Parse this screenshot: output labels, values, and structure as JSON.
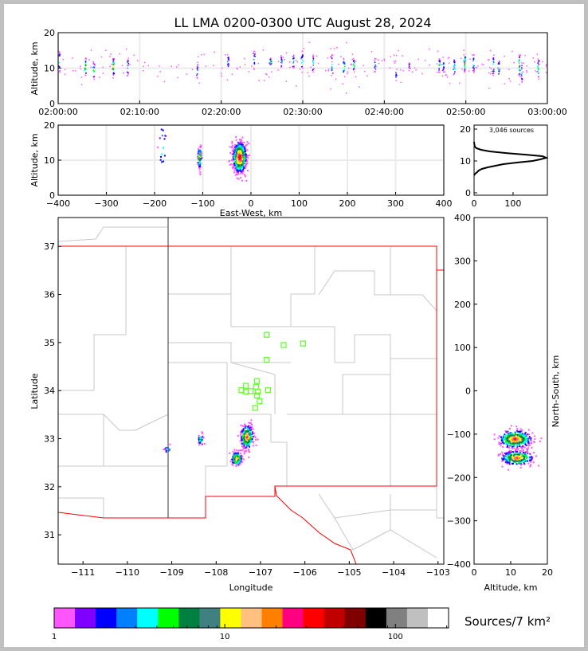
{
  "title": "LL LMA 0200-0300 UTC August 28, 2024",
  "colorbar": {
    "label": "Sources/7 km²",
    "tick_labels": [
      "1",
      "10",
      "100"
    ],
    "range": [
      1,
      205
    ],
    "scale": "log",
    "colors": [
      "#ff55ff",
      "#8000ff",
      "#0000ff",
      "#0080ff",
      "#00ffff",
      "#00ff00",
      "#008040",
      "#408080",
      "#ffff00",
      "#ffc080",
      "#ff8000",
      "#ff0080",
      "#ff0000",
      "#c00000",
      "#800000",
      "#000000",
      "#808080",
      "#c0c0c0",
      "#ffffff"
    ]
  },
  "chart_data": [
    {
      "type": "scatter",
      "panel": "time-altitude",
      "xlabel": "",
      "ylabel": "Altitude, km",
      "xlim_minutes": [
        0,
        60
      ],
      "ylim": [
        0,
        20
      ],
      "xtick_labels": [
        "02:00:00",
        "02:10:00",
        "02:20:00",
        "02:30:00",
        "02:40:00",
        "02:50:00",
        "03:00:00"
      ],
      "ytick_labels": [
        "0",
        "10",
        "20"
      ],
      "grid": true,
      "source_columns": [
        {
          "t": 0.1,
          "alt": [
            9,
            15
          ],
          "n": 14
        },
        {
          "t": 3.3,
          "alt": [
            8,
            13
          ],
          "n": 22
        },
        {
          "t": 4.3,
          "alt": [
            7,
            12
          ],
          "n": 16
        },
        {
          "t": 6.7,
          "alt": [
            8,
            13
          ],
          "n": 26
        },
        {
          "t": 8.5,
          "alt": [
            8,
            13
          ],
          "n": 14
        },
        {
          "t": 17.0,
          "alt": [
            7,
            12
          ],
          "n": 10
        },
        {
          "t": 20.8,
          "alt": [
            10,
            14
          ],
          "n": 12
        },
        {
          "t": 24.0,
          "alt": [
            10,
            15
          ],
          "n": 12
        },
        {
          "t": 26.0,
          "alt": [
            11,
            13
          ],
          "n": 20
        },
        {
          "t": 27.3,
          "alt": [
            10,
            14
          ],
          "n": 12
        },
        {
          "t": 28.8,
          "alt": [
            10,
            14
          ],
          "n": 12
        },
        {
          "t": 29.9,
          "alt": [
            9,
            15
          ],
          "n": 14
        },
        {
          "t": 31.2,
          "alt": [
            9,
            14
          ],
          "n": 14
        },
        {
          "t": 33.5,
          "alt": [
            8,
            14
          ],
          "n": 14
        },
        {
          "t": 35.0,
          "alt": [
            8,
            13
          ],
          "n": 16
        },
        {
          "t": 36.2,
          "alt": [
            9,
            13
          ],
          "n": 18
        },
        {
          "t": 38.8,
          "alt": [
            9,
            13
          ],
          "n": 12
        },
        {
          "t": 41.4,
          "alt": [
            6,
            10
          ],
          "n": 8
        },
        {
          "t": 43.0,
          "alt": [
            9,
            12
          ],
          "n": 8
        },
        {
          "t": 46.7,
          "alt": [
            9,
            13
          ],
          "n": 16
        },
        {
          "t": 47.2,
          "alt": [
            9,
            13
          ],
          "n": 12
        },
        {
          "t": 48.5,
          "alt": [
            8,
            13
          ],
          "n": 16
        },
        {
          "t": 49.8,
          "alt": [
            9,
            14
          ],
          "n": 22
        },
        {
          "t": 50.9,
          "alt": [
            9,
            14
          ],
          "n": 16
        },
        {
          "t": 53.3,
          "alt": [
            8,
            14
          ],
          "n": 16
        },
        {
          "t": 54.0,
          "alt": [
            7,
            13
          ],
          "n": 12
        },
        {
          "t": 56.5,
          "alt": [
            8,
            14
          ],
          "n": 22
        },
        {
          "t": 56.8,
          "alt": [
            6,
            12
          ],
          "n": 14
        },
        {
          "t": 58.8,
          "alt": [
            7,
            13
          ],
          "n": 16
        }
      ]
    },
    {
      "type": "scatter",
      "panel": "east-west-altitude",
      "xlabel": "East-West, km",
      "ylabel": "Altitude, km",
      "xlim": [
        -400,
        400
      ],
      "ylim": [
        0,
        20
      ],
      "xtick_labels": [
        "−400",
        "−300",
        "−200",
        "−100",
        "0",
        "100",
        "200",
        "300",
        "400"
      ],
      "ytick_labels": [
        "0",
        "10",
        "20"
      ],
      "grid": true,
      "source_clusters": [
        {
          "x": -25,
          "alt": 11,
          "sx": 7,
          "salt": 2.2,
          "n": 700
        },
        {
          "x": -108,
          "alt": 11,
          "sx": 2,
          "salt": 1.5,
          "n": 90
        },
        {
          "x": -185,
          "alt": 14,
          "sx": 4,
          "salt": 4,
          "n": 15
        }
      ]
    },
    {
      "type": "line",
      "panel": "altitude-histogram",
      "annotation": "3,046 sources",
      "xlim": [
        0,
        188
      ],
      "ylim": [
        0,
        20
      ],
      "xtick_labels": [
        "0",
        "100"
      ],
      "ytick_labels": [
        "0",
        "10",
        "20"
      ],
      "profile_alt_count": [
        [
          5.5,
          0
        ],
        [
          6,
          3
        ],
        [
          6.5,
          8
        ],
        [
          7,
          12
        ],
        [
          7.5,
          20
        ],
        [
          8,
          35
        ],
        [
          8.5,
          55
        ],
        [
          9,
          75
        ],
        [
          9.5,
          110
        ],
        [
          10,
          150
        ],
        [
          10.5,
          170
        ],
        [
          11,
          185
        ],
        [
          11.5,
          175
        ],
        [
          12,
          130
        ],
        [
          12.5,
          80
        ],
        [
          13,
          40
        ],
        [
          13.5,
          18
        ],
        [
          14,
          6
        ],
        [
          14.5,
          2
        ],
        [
          15,
          1
        ],
        [
          16,
          0
        ]
      ]
    },
    {
      "type": "scatter",
      "panel": "plan-view",
      "xlabel": "Longitude",
      "ylabel": "Latitude",
      "xlim": [
        -111.56,
        -102.87
      ],
      "ylim": [
        30.39,
        37.6
      ],
      "xtick_labels": [
        "−111",
        "−110",
        "−109",
        "−108",
        "−107",
        "−106",
        "−105",
        "−104",
        "−103"
      ],
      "ytick_labels": [
        "31",
        "32",
        "33",
        "34",
        "35",
        "36",
        "37"
      ],
      "stations_lonlat": [
        [
          -106.86,
          35.16
        ],
        [
          -106.48,
          34.95
        ],
        [
          -106.04,
          34.98
        ],
        [
          -106.86,
          34.64
        ],
        [
          -107.08,
          34.2
        ],
        [
          -107.33,
          34.1
        ],
        [
          -107.1,
          34.08
        ],
        [
          -107.43,
          34.01
        ],
        [
          -107.33,
          33.98
        ],
        [
          -107.22,
          33.99
        ],
        [
          -107.06,
          33.98
        ],
        [
          -106.83,
          34.01
        ],
        [
          -107.08,
          33.9
        ],
        [
          -107.02,
          33.78
        ],
        [
          -107.12,
          33.64
        ]
      ],
      "source_clusters": [
        {
          "lon": -107.32,
          "lat": 33.05,
          "slon": 0.07,
          "slat": 0.12,
          "n": 320
        },
        {
          "lon": -107.55,
          "lat": 32.6,
          "slon": 0.06,
          "slat": 0.07,
          "n": 160
        },
        {
          "lon": -108.36,
          "lat": 33.0,
          "slon": 0.03,
          "slat": 0.06,
          "n": 30
        },
        {
          "lon": -109.1,
          "lat": 32.8,
          "slon": 0.05,
          "slat": 0.05,
          "n": 10
        }
      ]
    },
    {
      "type": "scatter",
      "panel": "altitude-north-south",
      "xlabel": "Altitude, km",
      "ylabel": "North-South, km",
      "xlim": [
        0,
        20
      ],
      "ylim": [
        -400,
        400
      ],
      "xtick_labels": [
        "0",
        "10",
        "20"
      ],
      "ytick_labels": [
        "−400",
        "−300",
        "−200",
        "−100",
        "0",
        "100",
        "200",
        "300",
        "400"
      ],
      "source_clusters": [
        {
          "alt": 11,
          "y": -110,
          "salt": 2.2,
          "sy": 10,
          "n": 380
        },
        {
          "alt": 11.5,
          "y": -153,
          "salt": 2.2,
          "sy": 8,
          "n": 260
        }
      ]
    }
  ]
}
